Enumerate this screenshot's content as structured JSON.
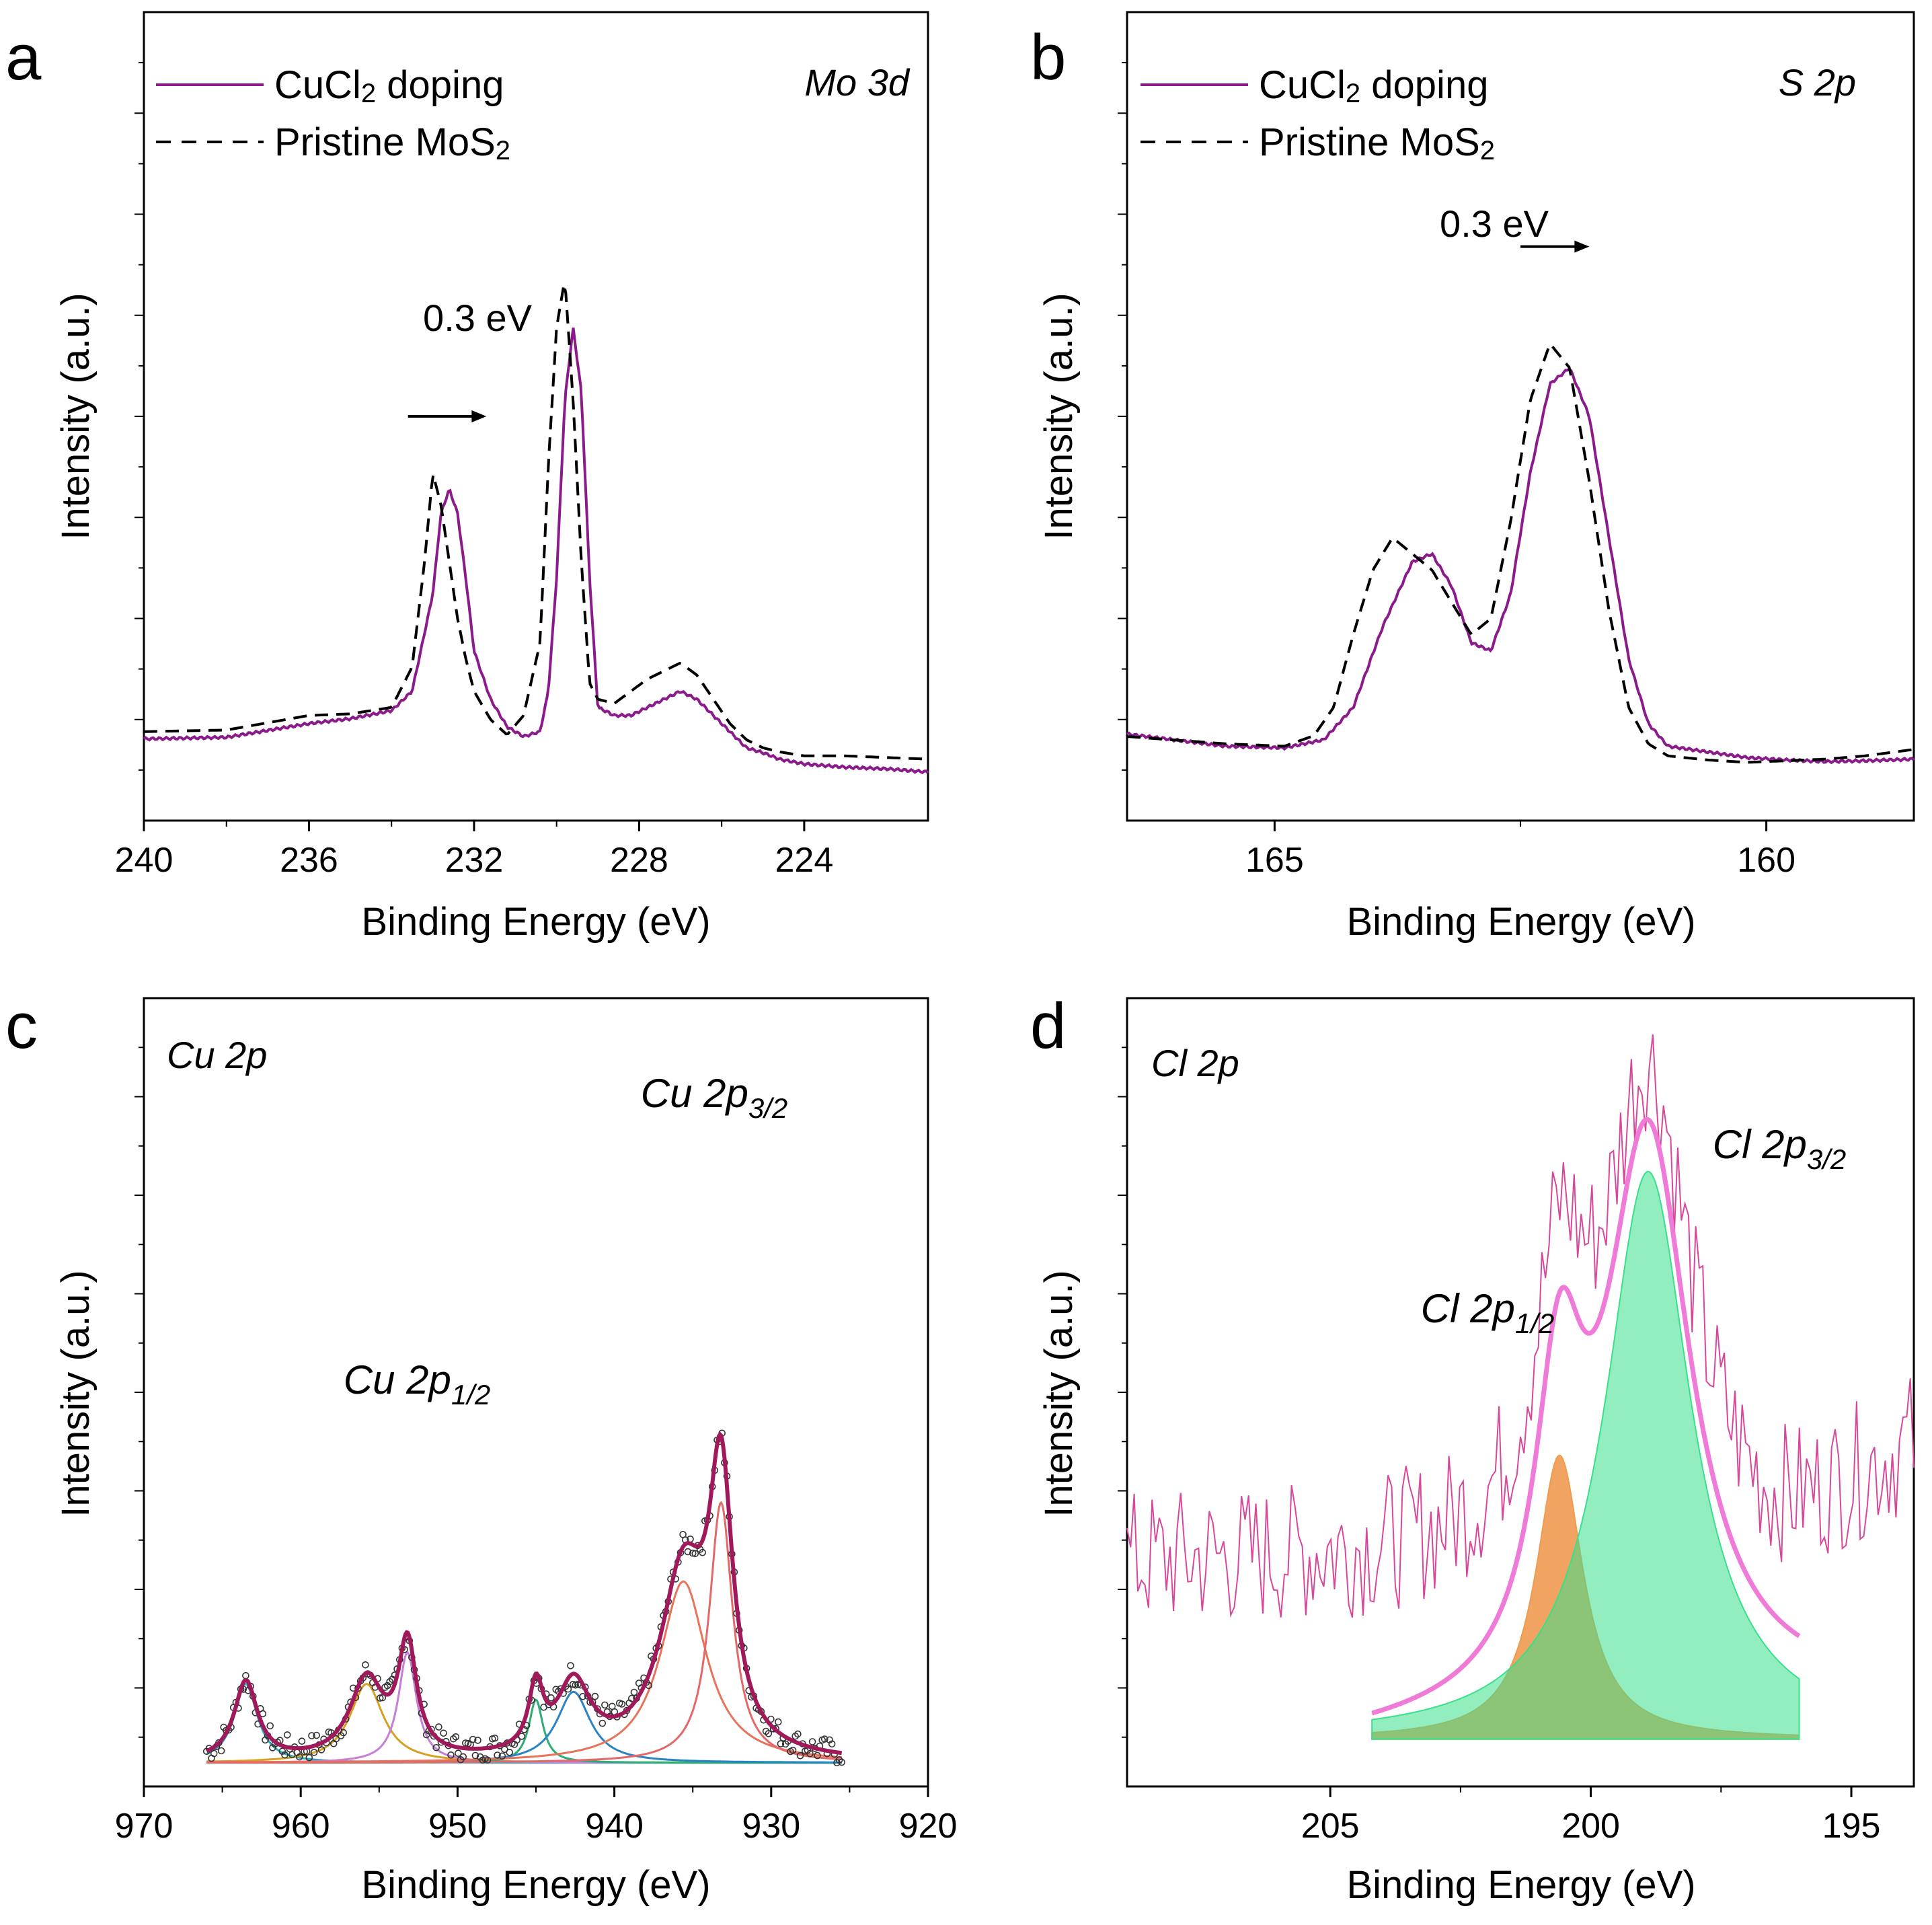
{
  "chart_data": [
    {
      "id": "a",
      "type": "line",
      "panel_label": "a",
      "title": "Mo 3d",
      "xlabel": "Binding Energy (eV)",
      "ylabel": "Intensity (a.u.)",
      "xlim": [
        240,
        221
      ],
      "ylim": [
        0,
        100
      ],
      "xticks": [
        240,
        236,
        232,
        228,
        224
      ],
      "xticklabels": [
        "240",
        "236",
        "232",
        "228",
        "224"
      ],
      "legend": {
        "position": "top-left",
        "entries": [
          {
            "label": "CuCl",
            "sub": "2",
            "suffix": " doping",
            "style": "solid",
            "color": "#8B1A8B"
          },
          {
            "label": "Pristine MoS",
            "sub": "2",
            "suffix": "",
            "style": "dashed",
            "color": "#000000"
          }
        ]
      },
      "annotation": {
        "text": "0.3 eV",
        "arrow_from": 233.6,
        "arrow_to": 231.7,
        "y": 50
      },
      "series": [
        {
          "name": "CuCl2 doping",
          "style": "solid",
          "color": "#8B1A8B",
          "x": [
            240,
            238,
            236,
            235,
            234,
            233.5,
            233,
            232.8,
            232.6,
            232.4,
            232.2,
            232,
            231.6,
            231.2,
            230.8,
            230.4,
            230.2,
            230,
            229.8,
            229.6,
            229.4,
            229.2,
            229,
            228.6,
            228.2,
            227.8,
            227.4,
            227,
            226.6,
            226.2,
            225.8,
            225.4,
            225,
            224.6,
            224,
            223,
            222,
            221
          ],
          "y": [
            10.1,
            10.3,
            12,
            12.6,
            13.6,
            16,
            28,
            38,
            41,
            38,
            30,
            21,
            15,
            11.6,
            10.4,
            11,
            16,
            30,
            52,
            61,
            53,
            30,
            14,
            13,
            13,
            14,
            15,
            16,
            15,
            13,
            11,
            9,
            8.4,
            7.6,
            7,
            6.6,
            6.4,
            6
          ]
        },
        {
          "name": "Pristine MoS2",
          "style": "dashed",
          "color": "#000000",
          "x": [
            240,
            238,
            236,
            235,
            234,
            233.5,
            233.2,
            233,
            232.8,
            232.6,
            232.4,
            232.2,
            232,
            231.6,
            231.2,
            230.8,
            230.4,
            230.2,
            230,
            229.8,
            229.6,
            229.4,
            229.2,
            229,
            228.6,
            228.2,
            227.8,
            227.4,
            227,
            226.6,
            226.2,
            225.8,
            225.4,
            225,
            224.6,
            224,
            223,
            222,
            221
          ],
          "y": [
            11,
            11.2,
            13,
            13.2,
            14,
            19,
            32,
            43,
            39,
            32,
            25,
            20,
            16,
            12.5,
            10.6,
            13,
            22,
            44,
            61,
            67,
            52,
            32,
            17,
            15,
            14.5,
            16,
            17.5,
            18.5,
            19.5,
            18,
            15,
            12,
            10,
            9,
            8.5,
            8,
            8,
            7.8,
            7.6
          ]
        }
      ]
    },
    {
      "id": "b",
      "type": "line",
      "panel_label": "b",
      "title": "S 2p",
      "xlabel": "Binding Energy (eV)",
      "ylabel": "Intensity (a.u.)",
      "xlim": [
        166.5,
        158.5
      ],
      "ylim": [
        0,
        100
      ],
      "xticks": [
        165,
        160
      ],
      "xticklabels": [
        "165",
        "160"
      ],
      "legend": {
        "position": "top-left",
        "entries": [
          {
            "label": "CuCl",
            "sub": "2",
            "suffix": " doping",
            "style": "solid",
            "color": "#8B1A8B"
          },
          {
            "label": "Pristine MoS",
            "sub": "2",
            "suffix": "",
            "style": "dashed",
            "color": "#000000"
          }
        ]
      },
      "annotation": {
        "text": "0.3 eV",
        "arrow_from": 162.5,
        "arrow_to": 161.8,
        "y": 71
      },
      "series": [
        {
          "name": "CuCl2 doping",
          "style": "solid",
          "color": "#8B1A8B",
          "x": [
            166.5,
            165.5,
            164.9,
            164.5,
            164.2,
            163.9,
            163.6,
            163.4,
            163.2,
            163,
            162.8,
            162.6,
            162.4,
            162.2,
            162,
            161.8,
            161.6,
            161.4,
            161.2,
            161,
            160.6,
            160.2,
            159.8,
            159.4,
            159,
            158.5
          ],
          "y": [
            10.7,
            9.2,
            9,
            10,
            14,
            24,
            32,
            33,
            29,
            22,
            21,
            28,
            43,
            54,
            56,
            50,
            35,
            20,
            12,
            9.2,
            8.5,
            7.8,
            7.5,
            7.3,
            7.4,
            7.6
          ]
        },
        {
          "name": "Pristine MoS2",
          "style": "dashed",
          "color": "#000000",
          "x": [
            166.5,
            165.5,
            164.9,
            164.6,
            164.4,
            164.2,
            164,
            163.8,
            163.6,
            163.4,
            163.2,
            163,
            162.8,
            162.6,
            162.4,
            162.2,
            162,
            161.8,
            161.6,
            161.4,
            161.2,
            161,
            160.6,
            160.2,
            159.8,
            159.4,
            159,
            158.5
          ],
          "y": [
            10.4,
            9.5,
            9.2,
            10.5,
            14,
            23,
            31,
            35,
            33,
            31,
            27,
            23,
            25,
            37,
            52,
            59,
            56,
            42,
            26,
            14,
            9.5,
            8,
            7.5,
            7.2,
            7.4,
            7.6,
            8,
            8.8
          ]
        }
      ]
    },
    {
      "id": "c",
      "type": "line",
      "panel_label": "c",
      "title": "Cu 2p",
      "xlabel": "Binding Energy (eV)",
      "ylabel": "Intensity (a.u.)",
      "xlim": [
        970,
        920
      ],
      "ylim": [
        0,
        100
      ],
      "xticks": [
        970,
        960,
        950,
        940,
        930,
        920
      ],
      "xticklabels": [
        "970",
        "960",
        "950",
        "940",
        "930",
        "920"
      ],
      "peak_labels": [
        {
          "text": "Cu 2p",
          "sub": "1/2",
          "x": 953,
          "y": 47
        },
        {
          "text": "Cu 2p",
          "sub": "3/2",
          "x": 933,
          "y": 79
        }
      ],
      "envelope_color": "#A0195A",
      "data_points_marker": "open-circle",
      "baseline": 3,
      "components": [
        {
          "center": 963.5,
          "height": 10,
          "width": 0.9,
          "color": "#2AA9C6"
        },
        {
          "center": 955.8,
          "height": 10,
          "width": 1.3,
          "color": "#D8A021"
        },
        {
          "center": 953.2,
          "height": 14,
          "width": 0.7,
          "color": "#C57FD6"
        },
        {
          "center": 945.0,
          "height": 8,
          "width": 0.55,
          "color": "#2BAE74"
        },
        {
          "center": 942.6,
          "height": 9,
          "width": 1.3,
          "color": "#2A84C2"
        },
        {
          "center": 935.6,
          "height": 23,
          "width": 1.8,
          "color": "#E8735A"
        },
        {
          "center": 933.2,
          "height": 33,
          "width": 0.9,
          "color": "#E56868"
        }
      ]
    },
    {
      "id": "d",
      "type": "area",
      "panel_label": "d",
      "title": "Cl 2p",
      "xlabel": "Binding Energy (eV)",
      "ylabel": "Intensity (a.u.)",
      "xlim": [
        208.9,
        193.8
      ],
      "ylim": [
        0,
        100
      ],
      "xticks": [
        205,
        200,
        195
      ],
      "xticklabels": [
        "205",
        "200",
        "195"
      ],
      "peak_labels": [
        {
          "text": "Cl 2p",
          "sub": "1/2",
          "x": 201.2,
          "y": 56
        },
        {
          "text": "Cl 2p",
          "sub": "3/2",
          "x": 197.6,
          "y": 80
        }
      ],
      "raw_color": "#D9479B",
      "envelope_color": "#F07AD8",
      "baseline": 6,
      "components": [
        {
          "label": "Cl 2p1/2",
          "center": 200.6,
          "height": 36,
          "width": 0.55,
          "color": "#F09A50"
        },
        {
          "label": "Cl 2p3/2",
          "center": 198.9,
          "height": 72,
          "width": 1.0,
          "color": "#38E08A"
        }
      ]
    }
  ]
}
